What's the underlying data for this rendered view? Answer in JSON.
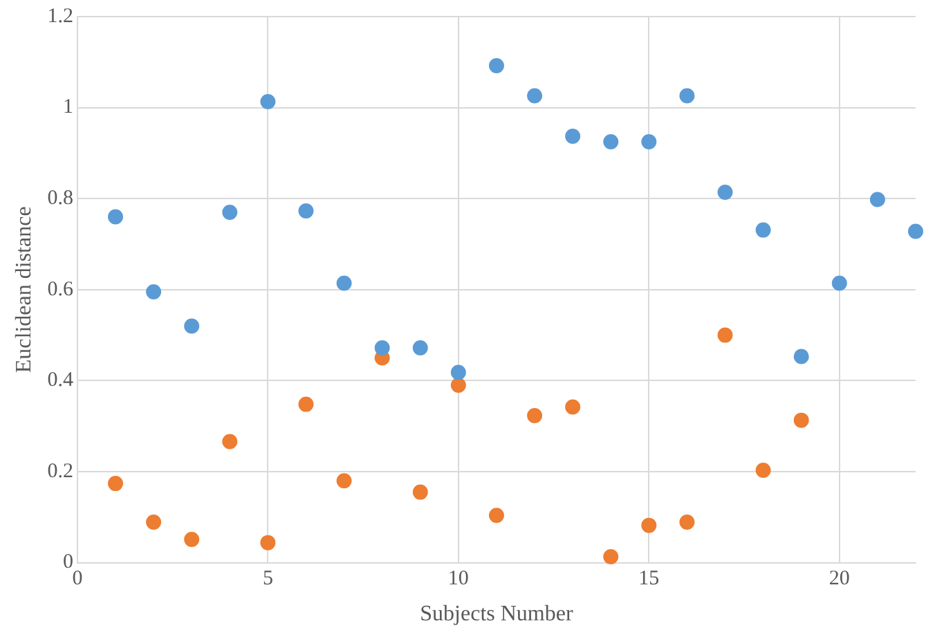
{
  "chart_data": {
    "type": "scatter",
    "xlabel": "Subjects Number",
    "ylabel": "Euclidean distance",
    "x": [
      1,
      2,
      3,
      4,
      5,
      6,
      7,
      8,
      9,
      10,
      11,
      12,
      13,
      14,
      15,
      16,
      17,
      18,
      19,
      20,
      21,
      22
    ],
    "series": [
      {
        "color": "#5b9bd5",
        "values": [
          0.76,
          0.595,
          0.52,
          0.77,
          1.013,
          0.773,
          0.614,
          0.472,
          0.472,
          0.418,
          1.092,
          1.026,
          0.937,
          0.925,
          0.925,
          1.026,
          0.814,
          0.731,
          0.453,
          0.614,
          0.798,
          0.728
        ]
      },
      {
        "color": "#ed7d31",
        "values": [
          0.174,
          0.089,
          0.051,
          0.266,
          0.044,
          0.348,
          0.18,
          0.45,
          0.155,
          0.39,
          0.104,
          0.323,
          0.342,
          0.013,
          0.082,
          0.089,
          0.5,
          0.203,
          0.313,
          null,
          null,
          null
        ]
      }
    ],
    "xlim": [
      0,
      22
    ],
    "xticks": [
      0,
      5,
      10,
      15,
      20
    ],
    "ylim": [
      0,
      1.2
    ],
    "yticks": [
      0,
      {
        "value": 0.2,
        "label": "0.2"
      },
      {
        "value": 0.4,
        "label": "0.4"
      },
      {
        "value": 0.6,
        "label": "0.6"
      },
      {
        "value": 0.8,
        "label": "0.8"
      },
      1,
      {
        "value": 1.2,
        "label": "1.2"
      }
    ],
    "grid": true,
    "marker": "circle",
    "legend": false
  }
}
